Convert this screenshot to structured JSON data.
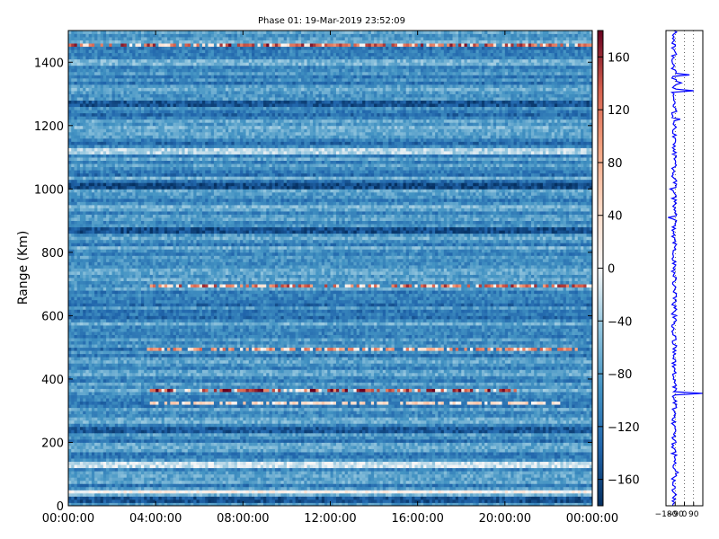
{
  "chart_data": [
    {
      "type": "heatmap",
      "title": "Phase 01: 19-Mar-2019 23:52:09",
      "ylabel": "Range (Km)",
      "xlabel": "",
      "x_tick_labels": [
        "00:00:00",
        "04:00:00",
        "08:00:00",
        "12:00:00",
        "16:00:00",
        "20:00:00",
        "00:00:00"
      ],
      "y_ticks": [
        0,
        200,
        400,
        600,
        800,
        1000,
        1200,
        1400
      ],
      "ylim": [
        0,
        1500
      ],
      "x_hours_range": [
        0,
        24
      ],
      "colormap": "RdBu_r",
      "colorbar_ticks": [
        160,
        120,
        80,
        40,
        0,
        -40,
        -80,
        -120,
        -160
      ],
      "colorbar_tick_labels": [
        "160",
        "120",
        "80",
        "40",
        "0",
        "−40",
        "−80",
        "−120",
        "−160"
      ],
      "clim": [
        -180,
        180
      ],
      "baseline_value": -95,
      "bright_bands_km": [
        {
          "range_km": 45,
          "value": 10
        },
        {
          "range_km": 128,
          "value": -20
        },
        {
          "range_km": 1400,
          "value": -60
        },
        {
          "range_km": 1120,
          "value": -30
        },
        {
          "range_km": 740,
          "value": -70
        }
      ],
      "dark_bands_km": [
        {
          "range_km": 1010,
          "value": -160
        },
        {
          "range_km": 870,
          "value": -155
        },
        {
          "range_km": 1270,
          "value": -150
        },
        {
          "range_km": 240,
          "value": -145
        },
        {
          "range_km": 20,
          "value": -150
        }
      ],
      "hot_rows": [
        {
          "range_km": 1455,
          "x_hours": [
            0,
            24
          ],
          "value": 160
        },
        {
          "range_km": 694,
          "x_hours": [
            3.8,
            24
          ],
          "value": 150
        },
        {
          "range_km": 497,
          "x_hours": [
            3.5,
            23.5
          ],
          "value": 120
        },
        {
          "range_km": 362,
          "x_hours": [
            3.7,
            20.5
          ],
          "value": 175
        },
        {
          "range_km": 322,
          "x_hours": [
            3.7,
            22.5
          ],
          "value": 60
        }
      ]
    },
    {
      "type": "line",
      "title": "",
      "xlabel": "",
      "ylabel": "",
      "x_tick_labels": [
        "−180",
        "−90",
        "0",
        "90"
      ],
      "x_ticks": [
        -180,
        -90,
        0,
        90
      ],
      "xlim": [
        -180,
        180
      ],
      "ylim": [
        0,
        1500
      ],
      "series_color": "#0000ff",
      "base_value": -100,
      "spikes": [
        {
          "range_km": 1360,
          "value": 50
        },
        {
          "range_km": 1310,
          "value": 90
        },
        {
          "range_km": 1335,
          "value": -30
        },
        {
          "range_km": 1220,
          "value": -40
        },
        {
          "range_km": 355,
          "value": 180
        },
        {
          "range_km": 105,
          "value": -60
        },
        {
          "range_km": 1000,
          "value": -140
        },
        {
          "range_km": 910,
          "value": -160
        },
        {
          "range_km": 870,
          "value": -120
        }
      ]
    }
  ]
}
